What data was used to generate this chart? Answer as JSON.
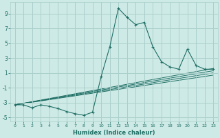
{
  "xlabel": "Humidex (Indice chaleur)",
  "ylabel": "",
  "bg_color": "#ceeae6",
  "grid_color": "#aacfcb",
  "line_color": "#1e6e64",
  "xlim": [
    -0.5,
    23.5
  ],
  "ylim": [
    -5.5,
    10.5
  ],
  "xticks": [
    0,
    1,
    2,
    3,
    4,
    5,
    6,
    7,
    8,
    9,
    10,
    11,
    12,
    13,
    14,
    15,
    16,
    17,
    18,
    19,
    20,
    21,
    22,
    23
  ],
  "yticks": [
    -5,
    -3,
    -1,
    1,
    3,
    5,
    7,
    9
  ],
  "main_x": [
    0,
    1,
    2,
    3,
    4,
    5,
    6,
    7,
    8,
    9,
    10,
    11,
    12,
    13,
    14,
    15,
    16,
    17,
    18,
    19,
    20,
    21,
    22,
    23
  ],
  "main_y": [
    -3.3,
    -3.3,
    -3.7,
    -3.3,
    -3.5,
    -3.8,
    -4.2,
    -4.5,
    -4.7,
    -4.3,
    0.5,
    4.5,
    9.7,
    8.5,
    7.5,
    7.8,
    4.5,
    2.5,
    1.8,
    1.5,
    4.2,
    2.0,
    1.5,
    1.5
  ],
  "trend_lines": [
    {
      "x": [
        0,
        23
      ],
      "y": [
        -3.3,
        1.6
      ]
    },
    {
      "x": [
        0,
        23
      ],
      "y": [
        -3.3,
        1.3
      ]
    },
    {
      "x": [
        0,
        23
      ],
      "y": [
        -3.3,
        1.0
      ]
    },
    {
      "x": [
        0,
        23
      ],
      "y": [
        -3.3,
        0.7
      ]
    }
  ]
}
